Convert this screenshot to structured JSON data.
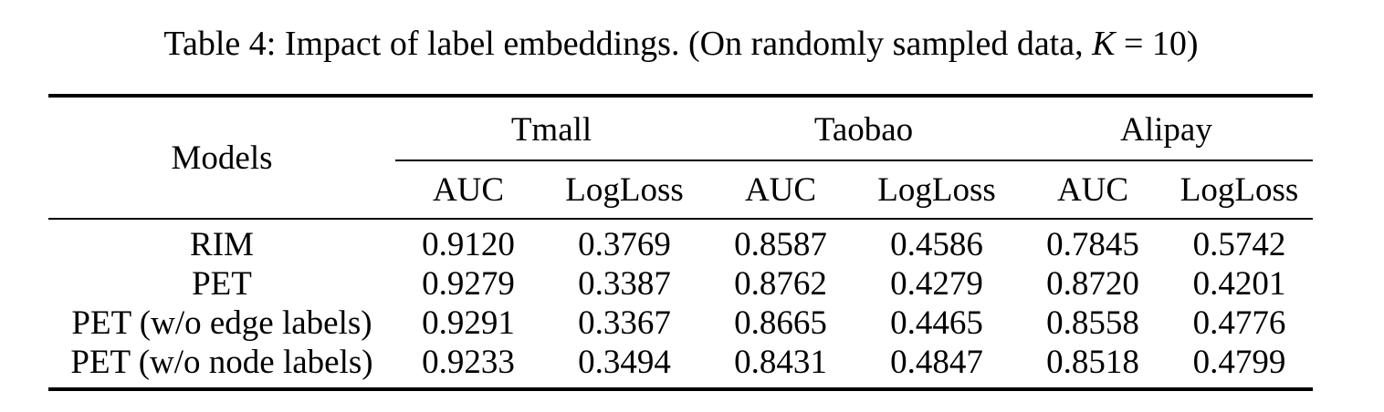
{
  "caption": {
    "prefix": "Table 4: Impact of label embeddings. (On randomly sampled data, ",
    "k_symbol": "K",
    "suffix": " = 10)"
  },
  "table": {
    "models_header": "Models",
    "groups": [
      "Tmall",
      "Taobao",
      "Alipay"
    ],
    "sub_headers": [
      "AUC",
      "LogLoss",
      "AUC",
      "LogLoss",
      "AUC",
      "LogLoss"
    ],
    "rows": [
      {
        "model": "RIM",
        "values": [
          "0.9120",
          "0.3769",
          "0.8587",
          "0.4586",
          "0.7845",
          "0.5742"
        ]
      },
      {
        "model": "PET",
        "values": [
          "0.9279",
          "0.3387",
          "0.8762",
          "0.4279",
          "0.8720",
          "0.4201"
        ]
      },
      {
        "model": "PET (w/o edge labels)",
        "values": [
          "0.9291",
          "0.3367",
          "0.8665",
          "0.4465",
          "0.8558",
          "0.4776"
        ]
      },
      {
        "model": "PET (w/o node labels)",
        "values": [
          "0.9233",
          "0.3494",
          "0.8431",
          "0.4847",
          "0.8518",
          "0.4799"
        ]
      }
    ]
  }
}
